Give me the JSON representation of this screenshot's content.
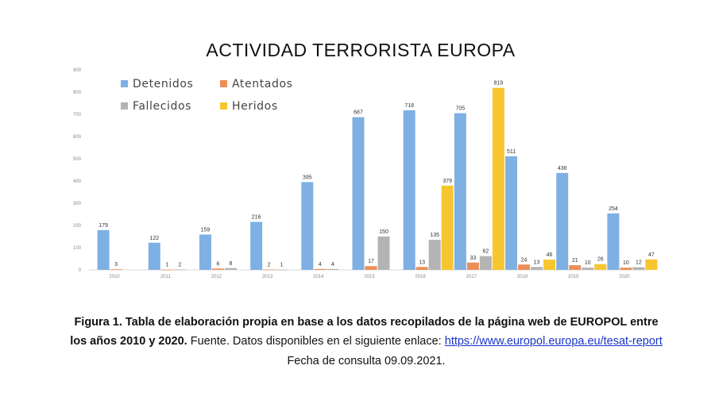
{
  "chart_data": {
    "type": "bar",
    "title": "ACTIVIDAD TERRORISTA EUROPA",
    "categories": [
      "2010",
      "2011",
      "2012",
      "2013",
      "2014",
      "2015",
      "2016",
      "2017",
      "2018",
      "2019",
      "2020"
    ],
    "ylim": [
      0,
      900
    ],
    "yticks": [
      0,
      100,
      200,
      300,
      400,
      500,
      600,
      700,
      800,
      900
    ],
    "grid": false,
    "legend_position": "top-left",
    "series": [
      {
        "name": "Detenidos",
        "color": "#7eb0e3",
        "values": [
          179,
          122,
          159,
          216,
          395,
          687,
          718,
          705,
          511,
          436,
          254
        ],
        "labels": [
          "179",
          "122",
          "159",
          "216",
          "395",
          "687",
          "718",
          "705",
          "511",
          "436",
          "254"
        ]
      },
      {
        "name": "Atentados",
        "color": "#ed8e5a",
        "values": [
          3,
          1,
          6,
          2,
          4,
          17,
          13,
          33,
          24,
          21,
          10
        ],
        "labels": [
          "3",
          "1",
          "6",
          "2",
          "4",
          "17",
          "13",
          "33",
          "24",
          "21",
          "10"
        ]
      },
      {
        "name": "Fallecidos",
        "color": "#b4b4b4",
        "values": [
          0,
          2,
          8,
          1,
          4,
          150,
          135,
          62,
          13,
          10,
          12
        ],
        "labels": [
          "",
          "2",
          "8",
          "1",
          "4",
          "150",
          "135",
          "62",
          "13",
          "10",
          "12"
        ]
      },
      {
        "name": "Heridos",
        "color": "#f7c62f",
        "values": [
          0,
          0,
          0,
          0,
          0,
          0,
          379,
          819,
          46,
          26,
          47
        ],
        "labels": [
          "",
          "",
          "",
          "",
          "",
          "",
          "379",
          "819",
          "46",
          "26",
          "47"
        ]
      }
    ]
  },
  "caption": {
    "line1": "Figura 1. Tabla de elaboración propia en base a los datos recopilados de la página web de EUROPOL entre",
    "line2_bold": "los años 2010 y 2020.",
    "line2_text": " Fuente. Datos disponibles en el siguiente enlace: ",
    "line2_link": "https://www.europol.europa.eu/tesat-report",
    "line3": "Fecha de consulta 09.09.2021."
  }
}
